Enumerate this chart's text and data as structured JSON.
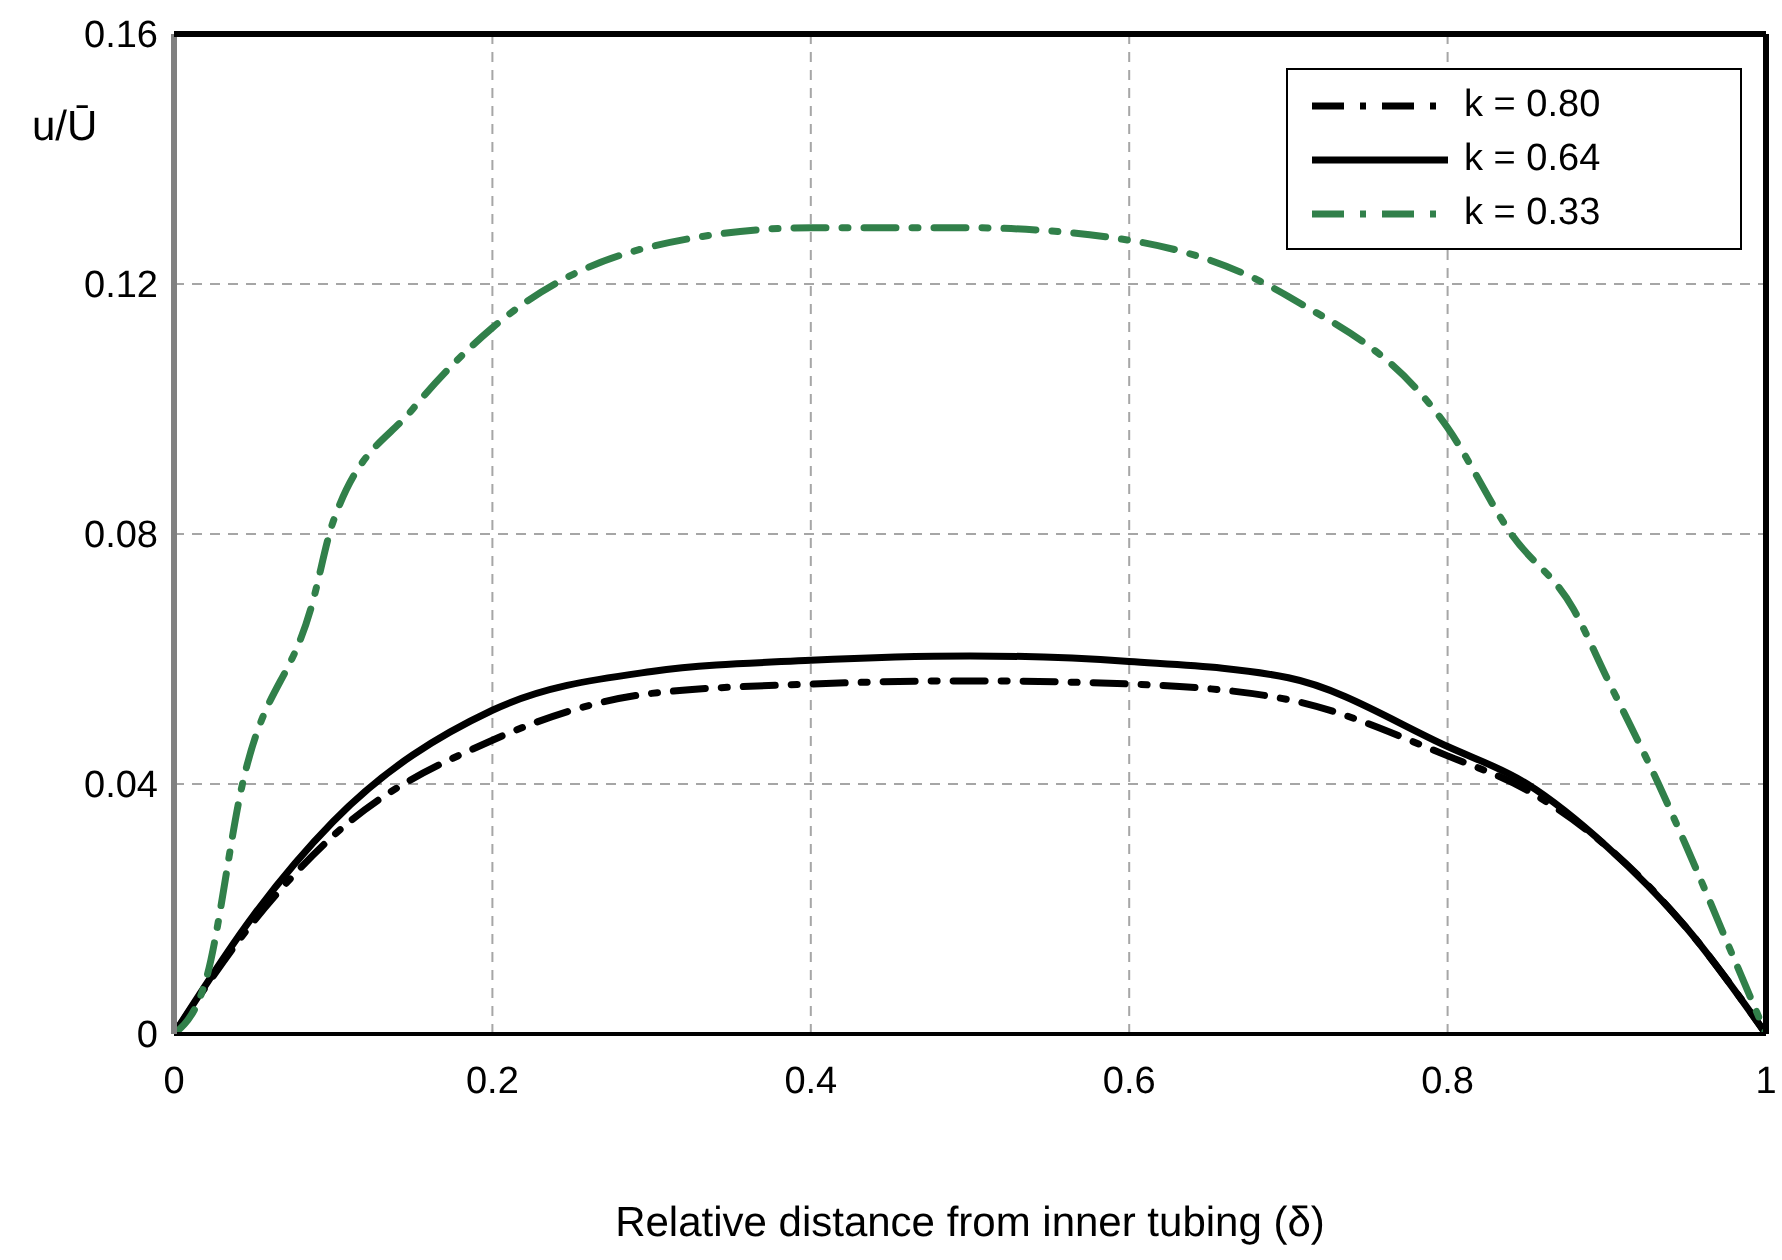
{
  "chart_data": {
    "type": "line",
    "xlabel": "Relative distance from inner tubing (δ)",
    "ylabel": "u/Ū",
    "xlim": [
      0,
      1
    ],
    "xticks": [
      0,
      0.2,
      0.4,
      0.6,
      0.8,
      1
    ],
    "ylim": [
      0,
      0.16
    ],
    "yticks": [
      0,
      0.04,
      0.08,
      0.12,
      0.16
    ],
    "grid": true,
    "legend": "top right",
    "marker": "none",
    "series": [
      {
        "name": "k = 0.80",
        "color": "#000000",
        "line_style": "dashed",
        "x": [
          0,
          0.05,
          0.1,
          0.2,
          0.3,
          0.4,
          0.5,
          0.6,
          0.7,
          0.8,
          0.85,
          0.9,
          0.95,
          1
        ],
        "values": [
          0,
          0.018,
          0.0317,
          0.047,
          0.0545,
          0.056,
          0.0565,
          0.056,
          0.0535,
          0.0445,
          0.039,
          0.03,
          0.017,
          0
        ]
      },
      {
        "name": "k = 0.64",
        "color": "#000000",
        "line_style": "solid",
        "x": [
          0,
          0.05,
          0.1,
          0.2,
          0.3,
          0.4,
          0.5,
          0.6,
          0.7,
          0.8,
          0.85,
          0.9,
          0.95,
          1
        ],
        "values": [
          0,
          0.019,
          0.034,
          0.0518,
          0.058,
          0.0598,
          0.0605,
          0.0596,
          0.057,
          0.046,
          0.04,
          0.03,
          0.017,
          0
        ]
      },
      {
        "name": "k = 0.33",
        "color": "#31804a",
        "line_style": "dashed",
        "x": [
          0,
          0.02,
          0.043,
          0.087,
          0.1,
          0.15,
          0.2,
          0.3,
          0.4,
          0.5,
          0.6,
          0.7,
          0.8,
          0.84,
          0.879,
          0.9,
          0.9325,
          0.95,
          0.98,
          1
        ],
        "values": [
          0,
          0.0086,
          0.04,
          0.069,
          0.082,
          0.1,
          0.113,
          0.126,
          0.129,
          0.129,
          0.127,
          0.118,
          0.097,
          0.08,
          0.068,
          0.057,
          0.04,
          0.03,
          0.012,
          0
        ]
      }
    ]
  }
}
